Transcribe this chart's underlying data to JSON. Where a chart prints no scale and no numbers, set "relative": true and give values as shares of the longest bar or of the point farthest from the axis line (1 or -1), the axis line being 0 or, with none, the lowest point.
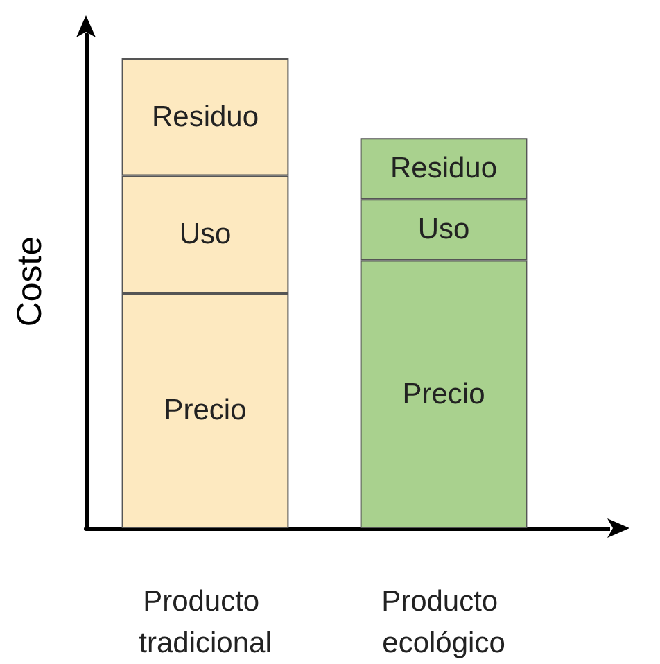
{
  "chart_data": {
    "type": "bar",
    "relative": true,
    "stacked": true,
    "ylabel": "Coste",
    "categories": [
      "Producto tradicional",
      "Producto ecológico"
    ],
    "series": [
      {
        "name": "Precio",
        "colors": [
          "#fde9c0",
          "#a9d18e"
        ],
        "values": [
          0.5,
          0.57
        ]
      },
      {
        "name": "Uso",
        "colors": [
          "#fde9c0",
          "#a9d18e"
        ],
        "values": [
          0.25,
          0.13
        ]
      },
      {
        "name": "Residuo",
        "colors": [
          "#fde9c0",
          "#a9d18e"
        ],
        "values": [
          0.25,
          0.13
        ]
      }
    ],
    "legend": false,
    "grid": false
  }
}
